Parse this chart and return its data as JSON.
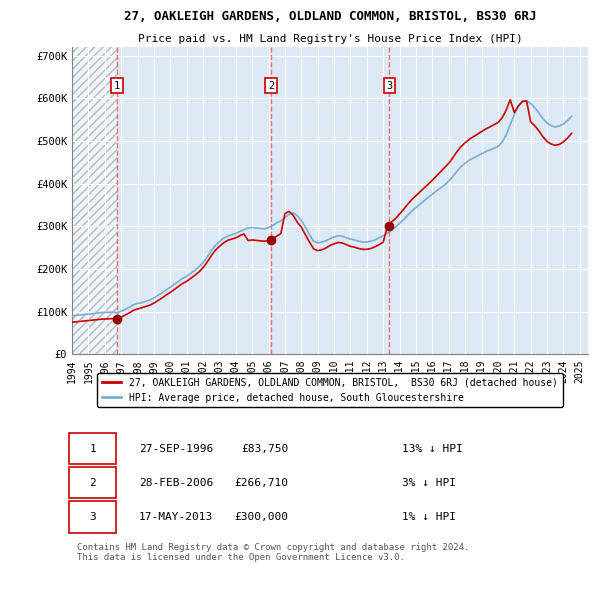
{
  "title": "27, OAKLEIGH GARDENS, OLDLAND COMMON, BRISTOL, BS30 6RJ",
  "subtitle": "Price paid vs. HM Land Registry's House Price Index (HPI)",
  "xlim_start": 1994.0,
  "xlim_end": 2025.5,
  "ylim": [
    0,
    720000
  ],
  "yticks": [
    0,
    100000,
    200000,
    300000,
    400000,
    500000,
    600000,
    700000
  ],
  "ytick_labels": [
    "£0",
    "£100K",
    "£200K",
    "£300K",
    "£400K",
    "£500K",
    "£600K",
    "£700K"
  ],
  "sale_dates": [
    1996.74,
    2006.16,
    2013.38
  ],
  "sale_prices": [
    83750,
    266710,
    300000
  ],
  "sale_labels": [
    "1",
    "2",
    "3"
  ],
  "red_line_color": "#cc0000",
  "blue_line_color": "#7aadcf",
  "dashed_line_color": "#e87070",
  "marker_color": "#990000",
  "chart_bg": "#dce9f5",
  "legend_label_red": "27, OAKLEIGH GARDENS, OLDLAND COMMON, BRISTOL,  BS30 6RJ (detached house)",
  "legend_label_blue": "HPI: Average price, detached house, South Gloucestershire",
  "table_rows": [
    [
      "1",
      "27-SEP-1996",
      "£83,750",
      "13% ↓ HPI"
    ],
    [
      "2",
      "28-FEB-2006",
      "£266,710",
      "3% ↓ HPI"
    ],
    [
      "3",
      "17-MAY-2013",
      "£300,000",
      "1% ↓ HPI"
    ]
  ],
  "footnote": "Contains HM Land Registry data © Crown copyright and database right 2024.\nThis data is licensed under the Open Government Licence v3.0.",
  "hpi_years": [
    1994.0,
    1994.25,
    1994.5,
    1994.75,
    1995.0,
    1995.25,
    1995.5,
    1995.75,
    1996.0,
    1996.25,
    1996.5,
    1996.75,
    1997.0,
    1997.25,
    1997.5,
    1997.75,
    1998.0,
    1998.25,
    1998.5,
    1998.75,
    1999.0,
    1999.25,
    1999.5,
    1999.75,
    2000.0,
    2000.25,
    2000.5,
    2000.75,
    2001.0,
    2001.25,
    2001.5,
    2001.75,
    2002.0,
    2002.25,
    2002.5,
    2002.75,
    2003.0,
    2003.25,
    2003.5,
    2003.75,
    2004.0,
    2004.25,
    2004.5,
    2004.75,
    2005.0,
    2005.25,
    2005.5,
    2005.75,
    2006.0,
    2006.25,
    2006.5,
    2006.75,
    2007.0,
    2007.25,
    2007.5,
    2007.75,
    2008.0,
    2008.25,
    2008.5,
    2008.75,
    2009.0,
    2009.25,
    2009.5,
    2009.75,
    2010.0,
    2010.25,
    2010.5,
    2010.75,
    2011.0,
    2011.25,
    2011.5,
    2011.75,
    2012.0,
    2012.25,
    2012.5,
    2012.75,
    2013.0,
    2013.25,
    2013.5,
    2013.75,
    2014.0,
    2014.25,
    2014.5,
    2014.75,
    2015.0,
    2015.25,
    2015.5,
    2015.75,
    2016.0,
    2016.25,
    2016.5,
    2016.75,
    2017.0,
    2017.25,
    2017.5,
    2017.75,
    2018.0,
    2018.25,
    2018.5,
    2018.75,
    2019.0,
    2019.25,
    2019.5,
    2019.75,
    2020.0,
    2020.25,
    2020.5,
    2020.75,
    2021.0,
    2021.25,
    2021.5,
    2021.75,
    2022.0,
    2022.25,
    2022.5,
    2022.75,
    2023.0,
    2023.25,
    2023.5,
    2023.75,
    2024.0,
    2024.25,
    2024.5
  ],
  "hpi_values": [
    90000,
    91000,
    92000,
    93000,
    94000,
    95000,
    96500,
    97500,
    98000,
    98500,
    99000,
    97000,
    101000,
    105000,
    110000,
    116000,
    119000,
    121000,
    124000,
    127000,
    132000,
    138000,
    144000,
    151000,
    157000,
    164000,
    171000,
    178000,
    183000,
    190000,
    197000,
    205000,
    215000,
    228000,
    243000,
    255000,
    264000,
    272000,
    277000,
    280000,
    283000,
    288000,
    292000,
    296000,
    297000,
    296000,
    295000,
    294000,
    297000,
    302000,
    308000,
    313000,
    320000,
    328000,
    332000,
    325000,
    314000,
    298000,
    280000,
    265000,
    261000,
    263000,
    266000,
    271000,
    275000,
    278000,
    277000,
    273000,
    270000,
    268000,
    265000,
    263000,
    263000,
    265000,
    268000,
    273000,
    278000,
    284000,
    291000,
    298000,
    307000,
    316000,
    326000,
    336000,
    344000,
    352000,
    360000,
    368000,
    375000,
    383000,
    390000,
    397000,
    406000,
    417000,
    429000,
    440000,
    448000,
    455000,
    460000,
    465000,
    470000,
    475000,
    479000,
    483000,
    487000,
    497000,
    514000,
    538000,
    562000,
    582000,
    593000,
    594000,
    588000,
    578000,
    566000,
    552000,
    542000,
    536000,
    533000,
    535000,
    540000,
    548000,
    558000
  ],
  "red_values": [
    75000,
    76000,
    77000,
    78000,
    79000,
    80000,
    81000,
    82000,
    82500,
    83000,
    83500,
    83750,
    87000,
    92000,
    97000,
    103000,
    106000,
    109000,
    112000,
    115000,
    120000,
    126000,
    132000,
    139000,
    145000,
    152000,
    159000,
    166000,
    171000,
    178000,
    185000,
    193000,
    203000,
    216000,
    231000,
    244000,
    253000,
    261000,
    267000,
    270000,
    273000,
    278000,
    282000,
    266710,
    268000,
    267000,
    266000,
    265000,
    266710,
    271000,
    277000,
    283000,
    330000,
    335000,
    326000,
    310000,
    298000,
    280000,
    263000,
    247000,
    243000,
    245000,
    249000,
    255000,
    259000,
    262000,
    261000,
    257000,
    253000,
    251000,
    248000,
    246000,
    246000,
    248000,
    252000,
    257000,
    263000,
    300000,
    310000,
    318000,
    329000,
    340000,
    352000,
    363000,
    372000,
    381000,
    390000,
    399000,
    408000,
    418000,
    428000,
    438000,
    448000,
    461000,
    475000,
    487000,
    496000,
    504000,
    510000,
    516000,
    522000,
    528000,
    533000,
    538000,
    543000,
    554000,
    572000,
    597000,
    567000,
    582000,
    593000,
    594000,
    545000,
    536000,
    524000,
    510000,
    499000,
    493000,
    490000,
    492000,
    498000,
    507000,
    518000
  ]
}
